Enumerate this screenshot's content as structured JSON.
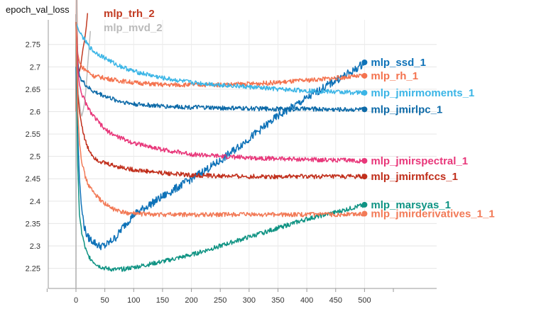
{
  "chart_data": {
    "type": "line",
    "title": "epoch_val_loss",
    "xlabel": "",
    "ylabel": "",
    "xlim": [
      -48,
      625
    ],
    "ylim": [
      2.205,
      2.805
    ],
    "x_ticks": [
      0,
      50,
      100,
      150,
      200,
      250,
      300,
      350,
      400,
      450,
      500
    ],
    "y_ticks": [
      2.25,
      2.3,
      2.35,
      2.4,
      2.45,
      2.5,
      2.55,
      2.6,
      2.65,
      2.7,
      2.75
    ],
    "grid": true,
    "legend": "labels at line ends (right)",
    "series": [
      {
        "name": "mlp_trh_2",
        "color": "#c23b22",
        "x": [
          0,
          1,
          2,
          3,
          4,
          6,
          8,
          10,
          12,
          15,
          18,
          20
        ],
        "y": [
          2.6,
          2.95,
          2.78,
          2.72,
          2.7,
          2.69,
          2.7,
          2.72,
          2.74,
          2.76,
          2.79,
          2.82
        ]
      },
      {
        "name": "mlp_mvd_2",
        "color": "#bbbbbb",
        "x": [
          0,
          1,
          2,
          4,
          6,
          8,
          10,
          12,
          15,
          18,
          20,
          25
        ],
        "y": [
          2.2,
          2.9,
          2.7,
          2.64,
          2.62,
          2.6,
          2.59,
          2.6,
          2.62,
          2.66,
          2.7,
          2.78
        ]
      },
      {
        "name": "mlp_ssd_1",
        "color": "#0e72b8",
        "x": [
          0,
          3,
          6,
          10,
          15,
          20,
          30,
          40,
          50,
          60,
          70,
          80,
          100,
          150,
          200,
          250,
          300,
          350,
          400,
          450,
          480,
          500
        ],
        "y": [
          2.7,
          2.55,
          2.45,
          2.38,
          2.34,
          2.32,
          2.31,
          2.3,
          2.3,
          2.31,
          2.32,
          2.34,
          2.37,
          2.41,
          2.45,
          2.49,
          2.54,
          2.59,
          2.63,
          2.67,
          2.69,
          2.71
        ]
      },
      {
        "name": "mlp_rh_1",
        "color": "#f4734f",
        "x": [
          0,
          3,
          6,
          10,
          20,
          30,
          50,
          70,
          100,
          150,
          200,
          250,
          300,
          350,
          400,
          450,
          500
        ],
        "y": [
          2.8,
          2.73,
          2.71,
          2.7,
          2.69,
          2.68,
          2.675,
          2.67,
          2.665,
          2.66,
          2.66,
          2.66,
          2.662,
          2.665,
          2.67,
          2.675,
          2.68
        ]
      },
      {
        "name": "mlp_jmirmoments_1",
        "color": "#3bb5e6",
        "x": [
          0,
          5,
          10,
          20,
          30,
          50,
          70,
          100,
          150,
          200,
          250,
          300,
          350,
          400,
          450,
          500
        ],
        "y": [
          2.8,
          2.78,
          2.77,
          2.75,
          2.735,
          2.72,
          2.705,
          2.69,
          2.675,
          2.665,
          2.66,
          2.655,
          2.65,
          2.647,
          2.644,
          2.642
        ]
      },
      {
        "name": "mlp_jmirlpc_1",
        "color": "#0d6aa8",
        "x": [
          0,
          3,
          6,
          10,
          20,
          30,
          50,
          70,
          100,
          150,
          200,
          250,
          300,
          350,
          400,
          450,
          500
        ],
        "y": [
          2.8,
          2.71,
          2.68,
          2.67,
          2.655,
          2.645,
          2.635,
          2.625,
          2.617,
          2.612,
          2.61,
          2.608,
          2.607,
          2.606,
          2.606,
          2.605,
          2.605
        ]
      },
      {
        "name": "mlp_jmirspectral_1",
        "color": "#e8377a",
        "x": [
          0,
          3,
          6,
          10,
          20,
          30,
          50,
          70,
          100,
          150,
          200,
          250,
          300,
          350,
          400,
          450,
          500
        ],
        "y": [
          2.8,
          2.7,
          2.66,
          2.64,
          2.61,
          2.59,
          2.56,
          2.545,
          2.53,
          2.515,
          2.505,
          2.5,
          2.497,
          2.495,
          2.493,
          2.492,
          2.49
        ]
      },
      {
        "name": "mlp_jmirmfccs_1",
        "color": "#c12f1c",
        "x": [
          0,
          3,
          6,
          10,
          15,
          20,
          30,
          40,
          50,
          70,
          100,
          150,
          200,
          250,
          300,
          350,
          400,
          450,
          500
        ],
        "y": [
          2.8,
          2.64,
          2.6,
          2.57,
          2.54,
          2.52,
          2.5,
          2.49,
          2.485,
          2.478,
          2.47,
          2.463,
          2.458,
          2.456,
          2.455,
          2.455,
          2.455,
          2.455,
          2.455
        ]
      },
      {
        "name": "mlp_marsyas_1",
        "color": "#0f9383",
        "x": [
          0,
          3,
          6,
          10,
          15,
          20,
          30,
          40,
          50,
          60,
          70,
          80,
          100,
          150,
          200,
          250,
          300,
          350,
          400,
          450,
          500
        ],
        "y": [
          2.8,
          2.48,
          2.37,
          2.33,
          2.3,
          2.28,
          2.265,
          2.255,
          2.25,
          2.248,
          2.247,
          2.248,
          2.252,
          2.265,
          2.28,
          2.3,
          2.32,
          2.34,
          2.36,
          2.375,
          2.392
        ]
      },
      {
        "name": "mlp_jmirderivatives_1_1",
        "color": "#f27a57",
        "x": [
          0,
          3,
          6,
          10,
          15,
          20,
          30,
          40,
          50,
          60,
          70,
          80,
          100,
          150,
          200,
          250,
          300,
          350,
          400,
          450,
          500
        ],
        "y": [
          2.8,
          2.6,
          2.53,
          2.49,
          2.46,
          2.44,
          2.42,
          2.405,
          2.395,
          2.385,
          2.38,
          2.375,
          2.372,
          2.37,
          2.37,
          2.37,
          2.37,
          2.37,
          2.37,
          2.37,
          2.372
        ]
      }
    ]
  }
}
